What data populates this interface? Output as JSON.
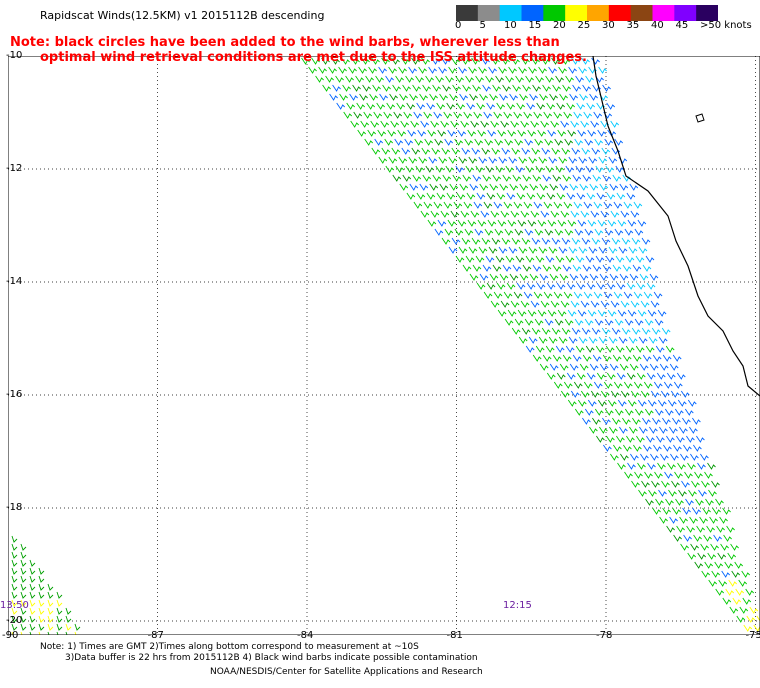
{
  "header": {
    "title": "Rapidscat Winds(12.5KM) v1 2015112B descending",
    "note_line1": "Note: black circles have been added to the wind barbs, wherever less than",
    "note_line2": "optimal wind retrieval conditions are met due to the ISS attitude changes."
  },
  "colorbar": {
    "labels": [
      "0",
      "5",
      "10",
      "15",
      "20",
      "25",
      "30",
      "35",
      "40",
      "45",
      ">50 knots"
    ],
    "colors": [
      "#3a3a3a",
      "#8c8c8c",
      "#00c8ff",
      "#0064ff",
      "#00c800",
      "#ffff00",
      "#ffa500",
      "#ff0000",
      "#8b4513",
      "#ff00ff",
      "#8000ff",
      "#2a0060"
    ]
  },
  "map": {
    "lat_labels": [
      "-10",
      "-12",
      "-14",
      "-16",
      "-18",
      "-20"
    ],
    "lon_labels": [
      "-90",
      "-87",
      "-84",
      "-81",
      "-78",
      "-75"
    ],
    "times": [
      "13:50",
      "12:15"
    ]
  },
  "footer": {
    "line1": "Note: 1) Times are GMT 2)Times along bottom correspond to measurement at ~10S",
    "line2": "3)Data buffer is 22 hrs from 2015112B 4) Black wind barbs indicate possible contamination",
    "line3": "NOAA/NESDIS/Center for Satellite Applications and Research"
  }
}
